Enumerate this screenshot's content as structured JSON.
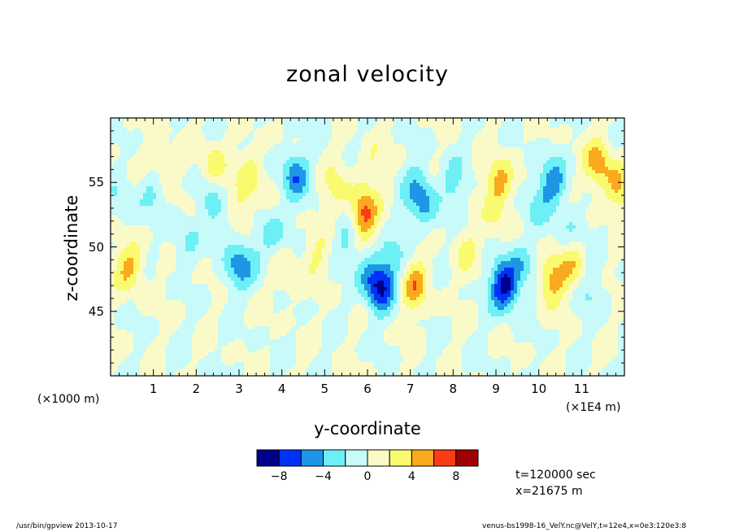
{
  "chart_data": {
    "type": "heatmap",
    "title": "zonal velocity",
    "xlabel": "y-coordinate",
    "ylabel": "z-coordinate",
    "x_unit_left": "(×1000 m)",
    "x_unit_right": "(×1E4 m)",
    "xlim": [
      0,
      12
    ],
    "ylim": [
      40,
      60
    ],
    "x_ticks": [
      "1",
      "2",
      "3",
      "4",
      "5",
      "6",
      "7",
      "8",
      "9",
      "10",
      "11"
    ],
    "y_ticks": [
      "45",
      "50",
      "55"
    ],
    "grid": false,
    "colorbar": {
      "levels": [
        -10,
        -8,
        -6,
        -4,
        -2,
        0,
        2,
        4,
        6,
        8,
        10
      ],
      "tick_labels": [
        "-8",
        "-4",
        "0",
        "4",
        "8"
      ],
      "tick_values": [
        -8,
        -4,
        0,
        4,
        8
      ],
      "colors": [
        "#00008c",
        "#0032f5",
        "#1e96e6",
        "#6cf0f5",
        "#c8fafa",
        "#fafac8",
        "#fafa6e",
        "#faaa1e",
        "#fa3c14",
        "#a00000"
      ]
    },
    "features": [
      {
        "y": 0.45,
        "z": 48.5,
        "u": 4.5
      },
      {
        "y": 1.15,
        "z": 56.2,
        "u": 2.5
      },
      {
        "y": 1.0,
        "z": 54.5,
        "u": -2.5
      },
      {
        "y": 2.4,
        "z": 56.0,
        "u": 4.0
      },
      {
        "y": 2.3,
        "z": 54.5,
        "u": -2.5
      },
      {
        "y": 3.05,
        "z": 52.5,
        "u": 2.5
      },
      {
        "y": 2.6,
        "z": 52.0,
        "u": -2.5
      },
      {
        "y": 3.3,
        "z": 55.5,
        "u": 3.0
      },
      {
        "y": 2.95,
        "z": 48.5,
        "u": -4.0
      },
      {
        "y": 3.3,
        "z": 49.0,
        "u": -2.0
      },
      {
        "y": 4.3,
        "z": 55.5,
        "u": -5.5
      },
      {
        "y": 3.8,
        "z": 51.0,
        "u": -3.0
      },
      {
        "y": 4.1,
        "z": 48.0,
        "u": 2.0
      },
      {
        "y": 4.8,
        "z": 49.5,
        "u": 2.0
      },
      {
        "y": 5.25,
        "z": 54.5,
        "u": 2.5
      },
      {
        "y": 5.9,
        "z": 52.5,
        "u": 7.0
      },
      {
        "y": 5.5,
        "z": 51.0,
        "u": -2.5
      },
      {
        "y": 6.0,
        "z": 48.0,
        "u": -3.0
      },
      {
        "y": 6.3,
        "z": 46.8,
        "u": -7.5
      },
      {
        "y": 6.1,
        "z": 56.5,
        "u": 2.0
      },
      {
        "y": 7.1,
        "z": 47.0,
        "u": 5.0
      },
      {
        "y": 6.6,
        "z": 49.0,
        "u": -2.5
      },
      {
        "y": 7.3,
        "z": 53.5,
        "u": -4.5
      },
      {
        "y": 7.1,
        "z": 55.0,
        "u": -2.0
      },
      {
        "y": 8.0,
        "z": 55.0,
        "u": -2.5
      },
      {
        "y": 8.3,
        "z": 49.5,
        "u": 2.0
      },
      {
        "y": 9.1,
        "z": 55.0,
        "u": 5.0
      },
      {
        "y": 9.0,
        "z": 52.0,
        "u": 2.0
      },
      {
        "y": 9.2,
        "z": 47.0,
        "u": -9.0
      },
      {
        "y": 9.6,
        "z": 48.5,
        "u": -3.0
      },
      {
        "y": 10.3,
        "z": 55.0,
        "u": -5.0
      },
      {
        "y": 9.9,
        "z": 53.0,
        "u": -2.5
      },
      {
        "y": 10.3,
        "z": 47.5,
        "u": 5.0
      },
      {
        "y": 10.8,
        "z": 48.5,
        "u": 3.0
      },
      {
        "y": 11.4,
        "z": 56.5,
        "u": 5.0
      },
      {
        "y": 11.85,
        "z": 54.5,
        "u": 4.0
      },
      {
        "y": 10.8,
        "z": 51.5,
        "u": -2.0
      },
      {
        "y": 1.7,
        "z": 50.5,
        "u": -2.0
      },
      {
        "y": 0.3,
        "z": 53.5,
        "u": -2.0
      },
      {
        "y": 11.2,
        "z": 46.5,
        "u": -2.0
      }
    ]
  },
  "info": {
    "time": "t=120000 sec",
    "x_position": "x=21675 m"
  },
  "footer": {
    "left": "/usr/bin/gpview   2013-10-17",
    "right": "venus-bs1998-16_VelY.nc@VelY,t=12e4,x=0e3:120e3:8"
  }
}
